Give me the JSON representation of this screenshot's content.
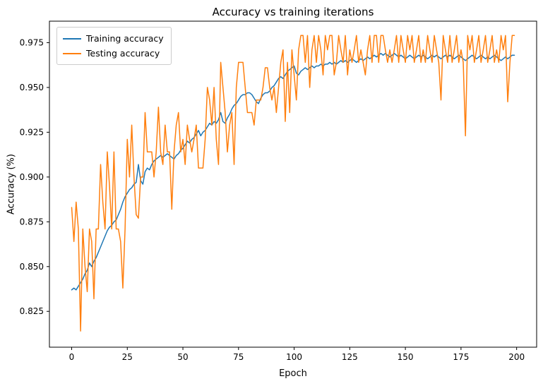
{
  "figure": {
    "title": "Accuracy vs training iterations",
    "xlabel": "Epoch",
    "ylabel": "Accuracy (%)"
  },
  "legend": {
    "position": "upper left",
    "items": [
      {
        "label": "Training accuracy",
        "color": "#1f77b4"
      },
      {
        "label": "Testing accuracy",
        "color": "#ff7f0e"
      }
    ]
  },
  "chart_data": {
    "type": "line",
    "title": "Accuracy vs training iterations",
    "xlabel": "Epoch",
    "ylabel": "Accuracy (%)",
    "xlim": [
      -10,
      209
    ],
    "ylim": [
      0.805,
      0.987
    ],
    "xticks": [
      0,
      25,
      50,
      75,
      100,
      125,
      150,
      175,
      200
    ],
    "yticks": [
      0.825,
      0.85,
      0.875,
      0.9,
      0.925,
      0.95,
      0.975
    ],
    "grid": false,
    "legend_position": "upper left",
    "x": {
      "start": 0,
      "step": 1,
      "count": 200
    },
    "series": [
      {
        "name": "Training accuracy",
        "color": "#1f77b4",
        "values": [
          0.837,
          0.838,
          0.837,
          0.839,
          0.841,
          0.843,
          0.846,
          0.848,
          0.852,
          0.85,
          0.853,
          0.855,
          0.858,
          0.861,
          0.864,
          0.867,
          0.87,
          0.872,
          0.873,
          0.875,
          0.876,
          0.879,
          0.882,
          0.886,
          0.889,
          0.891,
          0.893,
          0.894,
          0.896,
          0.897,
          0.907,
          0.898,
          0.896,
          0.903,
          0.905,
          0.904,
          0.907,
          0.909,
          0.91,
          0.911,
          0.912,
          0.911,
          0.912,
          0.913,
          0.912,
          0.911,
          0.91,
          0.912,
          0.913,
          0.915,
          0.916,
          0.918,
          0.92,
          0.919,
          0.921,
          0.922,
          0.924,
          0.926,
          0.923,
          0.925,
          0.926,
          0.928,
          0.93,
          0.929,
          0.931,
          0.93,
          0.932,
          0.936,
          0.931,
          0.93,
          0.933,
          0.935,
          0.938,
          0.94,
          0.941,
          0.943,
          0.945,
          0.946,
          0.946,
          0.947,
          0.947,
          0.946,
          0.944,
          0.942,
          0.941,
          0.944,
          0.946,
          0.947,
          0.947,
          0.948,
          0.95,
          0.951,
          0.953,
          0.955,
          0.956,
          0.955,
          0.957,
          0.959,
          0.96,
          0.961,
          0.962,
          0.958,
          0.957,
          0.959,
          0.96,
          0.961,
          0.96,
          0.961,
          0.962,
          0.961,
          0.962,
          0.962,
          0.963,
          0.962,
          0.963,
          0.963,
          0.964,
          0.963,
          0.964,
          0.963,
          0.964,
          0.965,
          0.964,
          0.965,
          0.964,
          0.965,
          0.966,
          0.965,
          0.964,
          0.965,
          0.966,
          0.965,
          0.966,
          0.967,
          0.966,
          0.967,
          0.968,
          0.967,
          0.968,
          0.969,
          0.968,
          0.969,
          0.968,
          0.967,
          0.968,
          0.969,
          0.968,
          0.967,
          0.968,
          0.967,
          0.966,
          0.967,
          0.968,
          0.967,
          0.966,
          0.967,
          0.968,
          0.967,
          0.968,
          0.967,
          0.966,
          0.967,
          0.968,
          0.967,
          0.968,
          0.967,
          0.966,
          0.967,
          0.968,
          0.967,
          0.968,
          0.967,
          0.966,
          0.967,
          0.968,
          0.967,
          0.966,
          0.965,
          0.966,
          0.967,
          0.968,
          0.967,
          0.966,
          0.967,
          0.968,
          0.967,
          0.966,
          0.967,
          0.966,
          0.967,
          0.968,
          0.967,
          0.966,
          0.965,
          0.966,
          0.967,
          0.966,
          0.967,
          0.968,
          0.968
        ]
      },
      {
        "name": "Testing accuracy",
        "color": "#ff7f0e",
        "values": [
          0.883,
          0.864,
          0.886,
          0.871,
          0.814,
          0.871,
          0.85,
          0.836,
          0.871,
          0.864,
          0.832,
          0.871,
          0.871,
          0.907,
          0.886,
          0.871,
          0.914,
          0.895,
          0.871,
          0.914,
          0.871,
          0.871,
          0.864,
          0.838,
          0.871,
          0.921,
          0.9,
          0.929,
          0.9,
          0.879,
          0.877,
          0.9,
          0.9,
          0.936,
          0.914,
          0.914,
          0.914,
          0.9,
          0.914,
          0.939,
          0.914,
          0.907,
          0.929,
          0.914,
          0.914,
          0.882,
          0.914,
          0.929,
          0.936,
          0.914,
          0.921,
          0.907,
          0.929,
          0.921,
          0.914,
          0.921,
          0.929,
          0.905,
          0.905,
          0.905,
          0.921,
          0.95,
          0.943,
          0.929,
          0.95,
          0.921,
          0.907,
          0.964,
          0.95,
          0.936,
          0.914,
          0.929,
          0.936,
          0.907,
          0.95,
          0.964,
          0.964,
          0.964,
          0.95,
          0.936,
          0.936,
          0.936,
          0.929,
          0.943,
          0.943,
          0.943,
          0.95,
          0.961,
          0.961,
          0.95,
          0.943,
          0.95,
          0.936,
          0.95,
          0.964,
          0.971,
          0.931,
          0.964,
          0.936,
          0.971,
          0.957,
          0.943,
          0.971,
          0.979,
          0.979,
          0.964,
          0.979,
          0.95,
          0.971,
          0.979,
          0.964,
          0.979,
          0.971,
          0.957,
          0.979,
          0.971,
          0.979,
          0.979,
          0.957,
          0.964,
          0.979,
          0.971,
          0.964,
          0.979,
          0.957,
          0.971,
          0.964,
          0.971,
          0.979,
          0.964,
          0.971,
          0.964,
          0.957,
          0.971,
          0.979,
          0.964,
          0.979,
          0.979,
          0.964,
          0.979,
          0.979,
          0.971,
          0.964,
          0.971,
          0.964,
          0.971,
          0.979,
          0.964,
          0.979,
          0.971,
          0.964,
          0.979,
          0.971,
          0.979,
          0.964,
          0.971,
          0.979,
          0.964,
          0.971,
          0.964,
          0.979,
          0.971,
          0.964,
          0.979,
          0.971,
          0.964,
          0.943,
          0.979,
          0.971,
          0.964,
          0.979,
          0.964,
          0.971,
          0.979,
          0.964,
          0.971,
          0.964,
          0.923,
          0.979,
          0.971,
          0.979,
          0.964,
          0.971,
          0.979,
          0.964,
          0.971,
          0.979,
          0.964,
          0.971,
          0.979,
          0.964,
          0.971,
          0.964,
          0.979,
          0.971,
          0.979,
          0.942,
          0.964,
          0.979,
          0.979
        ]
      }
    ]
  }
}
